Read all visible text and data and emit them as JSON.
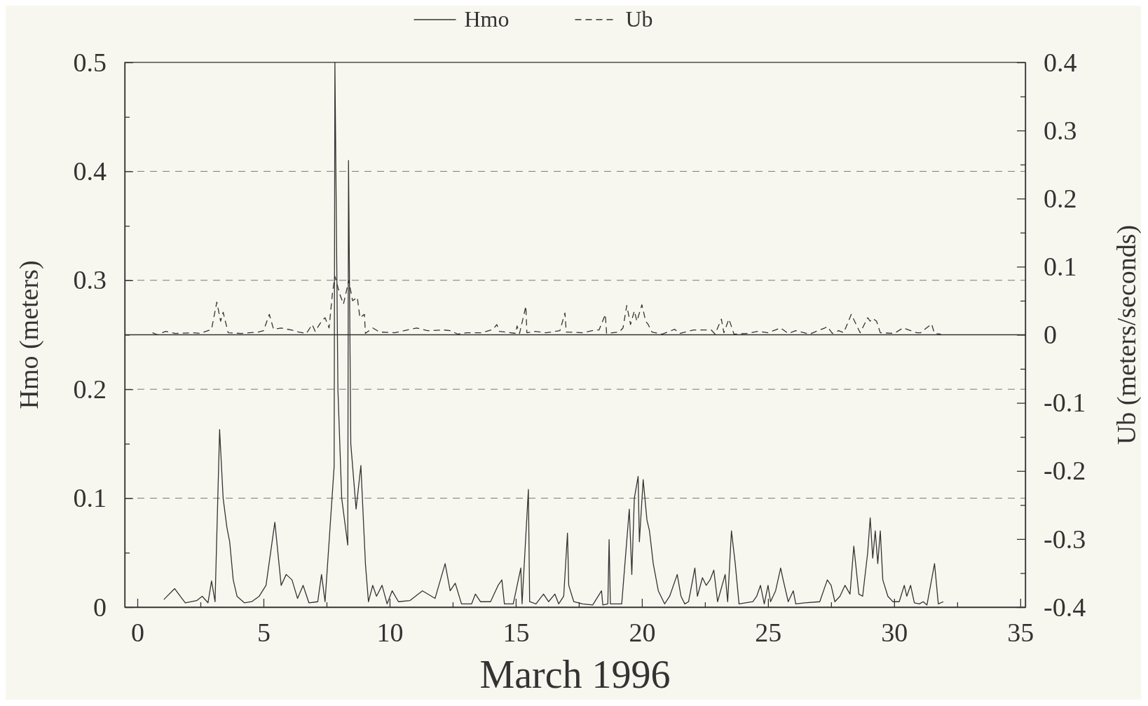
{
  "chart_data": {
    "type": "line",
    "xlabel": "March 1996",
    "ylabel": "Hmo (meters)",
    "y2label": "Ub (meters/seconds)",
    "xlim": [
      -0.5,
      35.2
    ],
    "xticks": [
      0,
      {
        "value": 2.5,
        "label": null
      },
      5,
      {
        "value": 7.5,
        "label": null
      },
      10,
      {
        "value": 12.5,
        "label": null
      },
      15,
      {
        "value": 17.5,
        "label": null
      },
      20,
      {
        "value": 22.5,
        "label": null
      },
      25,
      {
        "value": 27.5,
        "label": null
      },
      30,
      {
        "value": 32.5,
        "label": null
      },
      35
    ],
    "ylim": [
      0,
      0.5
    ],
    "yticks": [
      0,
      {
        "value": 0.05,
        "label": null
      },
      0.1,
      {
        "value": 0.15,
        "label": null
      },
      0.2,
      {
        "value": 0.25,
        "label": null
      },
      0.3,
      {
        "value": 0.35,
        "label": null
      },
      0.4,
      {
        "value": 0.45,
        "label": null
      },
      0.5
    ],
    "y2lim": [
      -0.4,
      0.4
    ],
    "y2ticks": [
      -0.4,
      {
        "value": -0.35,
        "label": null
      },
      -0.3,
      {
        "value": -0.25,
        "label": null
      },
      -0.2,
      {
        "value": -0.15,
        "label": null
      },
      -0.1,
      {
        "value": -0.05,
        "label": null
      },
      0,
      {
        "value": 0.05,
        "label": null
      },
      0.1,
      {
        "value": 0.15,
        "label": null
      },
      0.2,
      {
        "value": 0.25,
        "label": null
      },
      0.3,
      {
        "value": 0.35,
        "label": null
      },
      0.4
    ],
    "grid": "y",
    "legend": "top",
    "marker": "none",
    "ref_lines": [
      {
        "axis": "y2",
        "value": 0,
        "line_style": "solid"
      }
    ],
    "series": [
      {
        "name": "Hmo",
        "color": "#333333",
        "line_style": "solid",
        "x": [
          1.05,
          1.48,
          1.7,
          1.9,
          2.35,
          2.57,
          2.8,
          2.94,
          3.08,
          3.26,
          3.4,
          3.55,
          3.66,
          3.8,
          3.95,
          4.24,
          4.53,
          4.83,
          5.1,
          5.45,
          5.7,
          5.9,
          6.13,
          6.35,
          6.57,
          6.8,
          7.15,
          7.3,
          7.44,
          7.6,
          7.8,
          7.83,
          7.95,
          8.1,
          8.34,
          8.37,
          8.46,
          8.67,
          8.86,
          9.04,
          9.16,
          9.33,
          9.48,
          9.7,
          9.9,
          10.1,
          10.35,
          10.8,
          11.3,
          11.8,
          12.2,
          12.4,
          12.6,
          12.85,
          13.25,
          13.4,
          13.6,
          14.0,
          14.3,
          14.45,
          14.55,
          14.9,
          15.2,
          15.25,
          15.5,
          15.55,
          15.8,
          16.1,
          16.3,
          16.55,
          16.7,
          16.9,
          17.05,
          17.1,
          17.3,
          17.65,
          18.05,
          18.4,
          18.45,
          18.65,
          18.7,
          18.75,
          19.2,
          19.5,
          19.6,
          19.7,
          19.85,
          19.9,
          20.05,
          20.2,
          20.3,
          20.45,
          20.65,
          20.9,
          21.1,
          21.4,
          21.55,
          21.7,
          21.85,
          22.1,
          22.2,
          22.4,
          22.55,
          22.7,
          22.85,
          23.0,
          23.3,
          23.4,
          23.55,
          23.7,
          23.85,
          24.4,
          24.55,
          24.7,
          24.85,
          25.0,
          25.1,
          25.3,
          25.5,
          25.6,
          25.8,
          26.0,
          26.1,
          26.45,
          27.05,
          27.35,
          27.5,
          27.65,
          27.85,
          28.05,
          28.25,
          28.4,
          28.6,
          28.75,
          28.95,
          29.05,
          29.15,
          29.25,
          29.35,
          29.45,
          29.55,
          29.75,
          29.95,
          30.2,
          30.4,
          30.5,
          30.65,
          30.8,
          31.0,
          31.15,
          31.3,
          31.6,
          31.75,
          31.95
        ],
        "values": [
          0.007,
          0.017,
          0.01,
          0.004,
          0.006,
          0.01,
          0.004,
          0.024,
          0.005,
          0.163,
          0.1,
          0.073,
          0.06,
          0.025,
          0.01,
          0.004,
          0.005,
          0.01,
          0.02,
          0.078,
          0.02,
          0.03,
          0.025,
          0.008,
          0.02,
          0.004,
          0.005,
          0.03,
          0.005,
          0.06,
          0.129,
          0.5,
          0.2,
          0.1,
          0.057,
          0.41,
          0.15,
          0.09,
          0.13,
          0.04,
          0.005,
          0.02,
          0.01,
          0.02,
          0.003,
          0.015,
          0.005,
          0.006,
          0.015,
          0.008,
          0.04,
          0.015,
          0.022,
          0.003,
          0.003,
          0.012,
          0.005,
          0.005,
          0.02,
          0.025,
          0.003,
          0.003,
          0.036,
          0.003,
          0.108,
          0.005,
          0.003,
          0.012,
          0.005,
          0.012,
          0.003,
          0.01,
          0.068,
          0.02,
          0.005,
          0.003,
          0.002,
          0.015,
          0.002,
          0.003,
          0.062,
          0.003,
          0.003,
          0.09,
          0.03,
          0.1,
          0.12,
          0.06,
          0.117,
          0.08,
          0.07,
          0.04,
          0.015,
          0.003,
          0.01,
          0.03,
          0.01,
          0.003,
          0.005,
          0.036,
          0.01,
          0.027,
          0.02,
          0.025,
          0.034,
          0.005,
          0.03,
          0.005,
          0.07,
          0.04,
          0.003,
          0.005,
          0.01,
          0.02,
          0.003,
          0.02,
          0.005,
          0.015,
          0.036,
          0.025,
          0.005,
          0.015,
          0.003,
          0.004,
          0.005,
          0.025,
          0.02,
          0.005,
          0.01,
          0.02,
          0.012,
          0.056,
          0.012,
          0.01,
          0.05,
          0.082,
          0.045,
          0.07,
          0.04,
          0.07,
          0.025,
          0.01,
          0.005,
          0.005,
          0.02,
          0.01,
          0.02,
          0.004,
          0.003,
          0.005,
          0.002,
          0.04,
          0.003,
          0.005
        ]
      },
      {
        "name": "Ub",
        "color": "#333333",
        "line_style": "dashed",
        "axis": "y2",
        "x": [
          0.6,
          0.8,
          1.12,
          1.5,
          2.2,
          2.5,
          2.94,
          3.15,
          3.3,
          3.4,
          3.6,
          4.1,
          4.8,
          5.0,
          5.23,
          5.4,
          5.7,
          6.1,
          6.4,
          6.7,
          6.93,
          7.05,
          7.3,
          7.44,
          7.6,
          7.73,
          7.83,
          8.02,
          8.17,
          8.38,
          8.53,
          8.72,
          8.82,
          9.0,
          9.04,
          9.33,
          9.6,
          10.2,
          11.07,
          11.5,
          12.15,
          12.4,
          12.7,
          13.05,
          13.65,
          14.1,
          14.25,
          14.35,
          15.0,
          15.05,
          15.15,
          15.4,
          15.44,
          15.75,
          16.2,
          16.4,
          16.75,
          16.95,
          17.0,
          17.65,
          18.15,
          18.3,
          18.55,
          18.6,
          19.1,
          19.25,
          19.4,
          19.55,
          19.7,
          19.8,
          20.0,
          20.15,
          20.25,
          20.4,
          20.8,
          21.3,
          21.5,
          22.05,
          22.75,
          22.9,
          23.15,
          23.25,
          23.45,
          23.65,
          24.2,
          24.6,
          25.0,
          25.5,
          25.8,
          26.1,
          26.65,
          27.25,
          27.35,
          27.55,
          27.8,
          28.0,
          28.3,
          28.65,
          28.95,
          29.05,
          29.15,
          29.3,
          29.45,
          30.0,
          30.35,
          30.9,
          31.05,
          31.48,
          31.6,
          31.85
        ],
        "values": [
          0.003,
          0.0,
          0.005,
          0.002,
          0.003,
          0.002,
          0.008,
          0.048,
          0.02,
          0.033,
          0.003,
          0.002,
          0.004,
          0.006,
          0.03,
          0.008,
          0.01,
          0.007,
          0.004,
          0.002,
          0.015,
          0.005,
          0.02,
          0.025,
          0.01,
          0.06,
          0.086,
          0.06,
          0.045,
          0.08,
          0.05,
          0.055,
          0.025,
          0.03,
          0.002,
          0.01,
          0.004,
          0.003,
          0.01,
          0.006,
          0.007,
          0.006,
          0.001,
          0.003,
          0.003,
          0.008,
          0.015,
          0.005,
          0.002,
          0.013,
          0.002,
          0.042,
          0.003,
          0.005,
          0.003,
          0.004,
          0.006,
          0.032,
          0.004,
          0.003,
          0.007,
          0.007,
          0.03,
          0.002,
          0.004,
          0.01,
          0.043,
          0.015,
          0.035,
          0.02,
          0.044,
          0.02,
          0.015,
          0.004,
          0.001,
          0.008,
          0.002,
          0.007,
          0.007,
          0.001,
          0.023,
          0.003,
          0.023,
          0.001,
          0.002,
          0.005,
          0.003,
          0.01,
          0.002,
          0.006,
          0.001,
          0.01,
          0.012,
          0.002,
          0.006,
          0.003,
          0.03,
          0.003,
          0.025,
          0.02,
          0.024,
          0.02,
          0.003,
          0.002,
          0.01,
          0.003,
          0.003,
          0.016,
          0.002,
          0.001
        ]
      }
    ]
  }
}
